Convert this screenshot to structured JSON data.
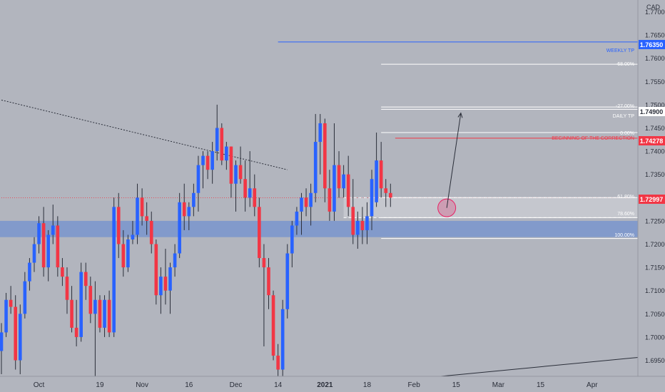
{
  "chart_data": {
    "type": "candlestick",
    "symbol_currency": "CAD",
    "y_axis": {
      "ylim": [
        1.691,
        1.774
      ],
      "ticks": [
        "1.77000",
        "1.76500",
        "1.76000",
        "1.75500",
        "1.75000",
        "1.74500",
        "1.74000",
        "1.73500",
        "1.73000",
        "1.72500",
        "1.72000",
        "1.71500",
        "1.71000",
        "1.70500",
        "1.70000",
        "1.69500"
      ]
    },
    "x_axis": {
      "labels": [
        {
          "text": "Oct",
          "bar": 8,
          "bold": false
        },
        {
          "text": "19",
          "bar": 21,
          "bold": false
        },
        {
          "text": "Nov",
          "bar": 30,
          "bold": false
        },
        {
          "text": "16",
          "bar": 40,
          "bold": false
        },
        {
          "text": "Dec",
          "bar": 50,
          "bold": false
        },
        {
          "text": "14",
          "bar": 59,
          "bold": false
        },
        {
          "text": "2021",
          "bar": 69,
          "bold": true
        },
        {
          "text": "18",
          "bar": 78,
          "bold": false
        },
        {
          "text": "Feb",
          "bar": 88,
          "bold": false
        },
        {
          "text": "15",
          "bar": 97,
          "bold": false
        },
        {
          "text": "Mar",
          "bar": 106,
          "bold": false
        },
        {
          "text": "15",
          "bar": 115,
          "bold": false
        },
        {
          "text": "Apr",
          "bar": 126,
          "bold": false
        }
      ]
    },
    "candles": [
      [
        1.697,
        1.703,
        1.692,
        1.701
      ],
      [
        1.701,
        1.7095,
        1.7,
        1.708
      ],
      [
        1.708,
        1.711,
        1.705,
        1.7065
      ],
      [
        1.7065,
        1.709,
        1.693,
        1.695
      ],
      [
        1.695,
        1.707,
        1.692,
        1.705
      ],
      [
        1.705,
        1.714,
        1.704,
        1.712
      ],
      [
        1.712,
        1.717,
        1.71,
        1.716
      ],
      [
        1.716,
        1.7215,
        1.714,
        1.72
      ],
      [
        1.72,
        1.726,
        1.718,
        1.7245
      ],
      [
        1.7245,
        1.728,
        1.713,
        1.715
      ],
      [
        1.715,
        1.723,
        1.712,
        1.722
      ],
      [
        1.722,
        1.7285,
        1.72,
        1.724
      ],
      [
        1.724,
        1.726,
        1.713,
        1.715
      ],
      [
        1.715,
        1.717,
        1.711,
        1.713
      ],
      [
        1.713,
        1.715,
        1.705,
        1.708
      ],
      [
        1.708,
        1.711,
        1.701,
        1.702
      ],
      [
        1.702,
        1.708,
        1.698,
        1.7
      ],
      [
        1.7,
        1.716,
        1.699,
        1.714
      ],
      [
        1.714,
        1.716,
        1.708,
        1.711
      ],
      [
        1.711,
        1.713,
        1.703,
        1.705
      ],
      [
        1.705,
        1.712,
        1.691,
        1.708
      ],
      [
        1.708,
        1.709,
        1.701,
        1.702
      ],
      [
        1.702,
        1.709,
        1.7,
        1.708
      ],
      [
        1.708,
        1.71,
        1.7,
        1.701
      ],
      [
        1.701,
        1.73,
        1.7,
        1.728
      ],
      [
        1.728,
        1.731,
        1.717,
        1.72
      ],
      [
        1.72,
        1.723,
        1.713,
        1.715
      ],
      [
        1.715,
        1.722,
        1.714,
        1.721
      ],
      [
        1.721,
        1.725,
        1.72,
        1.722
      ],
      [
        1.722,
        1.733,
        1.72,
        1.73
      ],
      [
        1.73,
        1.732,
        1.724,
        1.726
      ],
      [
        1.726,
        1.729,
        1.722,
        1.725
      ],
      [
        1.725,
        1.727,
        1.718,
        1.72
      ],
      [
        1.72,
        1.721,
        1.707,
        1.709
      ],
      [
        1.709,
        1.715,
        1.705,
        1.713
      ],
      [
        1.713,
        1.719,
        1.707,
        1.71
      ],
      [
        1.71,
        1.716,
        1.705,
        1.715
      ],
      [
        1.715,
        1.72,
        1.713,
        1.718
      ],
      [
        1.718,
        1.731,
        1.717,
        1.729
      ],
      [
        1.729,
        1.733,
        1.723,
        1.726
      ],
      [
        1.726,
        1.729,
        1.723,
        1.728
      ],
      [
        1.728,
        1.733,
        1.726,
        1.731
      ],
      [
        1.731,
        1.739,
        1.727,
        1.737
      ],
      [
        1.737,
        1.74,
        1.732,
        1.739
      ],
      [
        1.739,
        1.74,
        1.734,
        1.736
      ],
      [
        1.736,
        1.742,
        1.733,
        1.74
      ],
      [
        1.74,
        1.75,
        1.738,
        1.745
      ],
      [
        1.745,
        1.746,
        1.737,
        1.738
      ],
      [
        1.738,
        1.742,
        1.736,
        1.741
      ],
      [
        1.741,
        1.741,
        1.73,
        1.733
      ],
      [
        1.733,
        1.738,
        1.727,
        1.737
      ],
      [
        1.737,
        1.741,
        1.733,
        1.734
      ],
      [
        1.734,
        1.738,
        1.727,
        1.73
      ],
      [
        1.73,
        1.74,
        1.728,
        1.732
      ],
      [
        1.732,
        1.735,
        1.726,
        1.728
      ],
      [
        1.728,
        1.73,
        1.715,
        1.717
      ],
      [
        1.717,
        1.72,
        1.698,
        1.715
      ],
      [
        1.715,
        1.717,
        1.706,
        1.709
      ],
      [
        1.709,
        1.71,
        1.695,
        1.696
      ],
      [
        1.696,
        1.6985,
        1.691,
        1.693
      ],
      [
        1.693,
        1.708,
        1.691,
        1.706
      ],
      [
        1.706,
        1.72,
        1.704,
        1.718
      ],
      [
        1.718,
        1.725,
        1.715,
        1.724
      ],
      [
        1.724,
        1.728,
        1.722,
        1.727
      ],
      [
        1.727,
        1.731,
        1.722,
        1.73
      ],
      [
        1.73,
        1.732,
        1.726,
        1.728
      ],
      [
        1.728,
        1.733,
        1.724,
        1.731
      ],
      [
        1.731,
        1.748,
        1.729,
        1.742
      ],
      [
        1.742,
        1.748,
        1.735,
        1.746
      ],
      [
        1.746,
        1.747,
        1.729,
        1.732
      ],
      [
        1.732,
        1.736,
        1.725,
        1.727
      ],
      [
        1.727,
        1.746,
        1.725,
        1.737
      ],
      [
        1.737,
        1.74,
        1.73,
        1.732
      ],
      [
        1.732,
        1.737,
        1.73,
        1.735
      ],
      [
        1.735,
        1.739,
        1.726,
        1.728
      ],
      [
        1.728,
        1.734,
        1.72,
        1.722
      ],
      [
        1.722,
        1.727,
        1.719,
        1.725
      ],
      [
        1.725,
        1.728,
        1.72,
        1.723
      ],
      [
        1.723,
        1.729,
        1.72,
        1.726
      ],
      [
        1.726,
        1.736,
        1.723,
        1.734
      ],
      [
        1.729,
        1.744,
        1.728,
        1.738
      ],
      [
        1.738,
        1.742,
        1.73,
        1.732
      ],
      [
        1.732,
        1.734,
        1.728,
        1.731
      ],
      [
        1.731,
        1.733,
        1.728,
        1.73
      ]
    ],
    "levels": [
      {
        "name": "weekly-tp-line",
        "price": 1.7635,
        "color": "#2962ff",
        "start_bar": 59,
        "label": "WEEKLY TP",
        "tag": "1.76350",
        "tag_color": "#2962ff"
      },
      {
        "name": "fib-minus68-line",
        "price": 1.7587,
        "color": "#ffffff",
        "start_bar": 81,
        "label": "-68.00%"
      },
      {
        "name": "fib-minus27-line",
        "price": 1.7495,
        "color": "#ffffff",
        "start_bar": 81,
        "label": "-27.00%"
      },
      {
        "name": "daily-tp-line",
        "price": 1.749,
        "color": "#ffffff",
        "start_bar": 81,
        "label": "DAILY TP",
        "tag": "1.74900",
        "tag_color": "#ffffff"
      },
      {
        "name": "fib-0-line",
        "price": 1.744,
        "color": "#ffffff",
        "start_bar": 81,
        "label": "0.00%"
      },
      {
        "name": "correction-start-line",
        "price": 1.7428,
        "color": "#f23645",
        "start_bar": 84,
        "label": "BEGINNING OF THE CORRECTION",
        "tag": "1.74278",
        "tag_color": "#f23645"
      },
      {
        "name": "current-price-line",
        "price": 1.72997,
        "color": "#f23645",
        "start_bar": 0,
        "dotted": true,
        "tag": "1.72997",
        "tag_color": "#f23645"
      },
      {
        "name": "fib-618-line",
        "price": 1.73,
        "color": "#ffffff",
        "start_bar": 81,
        "label": "61.80%"
      },
      {
        "name": "fib-786-line",
        "price": 1.7257,
        "color": "#ffffff",
        "start_bar": 81,
        "label": "78.60%"
      },
      {
        "name": "fib-100-line",
        "price": 1.7212,
        "color": "#ffffff",
        "start_bar": 81,
        "label": "100.00%"
      }
    ],
    "labels": {
      "currency": "CAD",
      "weekly_tp": "WEEKLY TP",
      "fib_minus68": "-68.00%",
      "fib_minus27": "-27.00%",
      "daily_tp": "DAILY TP",
      "fib_0": "0.00%",
      "correction": "BEGINNING OF THE CORRECTION",
      "fib_618": "61.80%",
      "fib_786": "78.60%",
      "fib_100": "100.00%",
      "tag_weekly": "1.76350",
      "tag_daily": "1.74900",
      "tag_correction": "1.74278",
      "tag_current": "1.72997"
    },
    "zones": [
      {
        "name": "demand-zone",
        "from": 1.7215,
        "to": 1.725,
        "color": "#5b84d6",
        "opacity": 0.55
      },
      {
        "name": "fib-fill-zone",
        "from": 1.7257,
        "to": 1.73,
        "color": "#ffffff",
        "opacity": 0.25
      }
    ],
    "trendlines": [
      {
        "name": "downtrend-line",
        "from": [
          0,
          1.751
        ],
        "to": [
          61,
          1.736
        ],
        "dotted": true,
        "color": "#2a2e39"
      },
      {
        "name": "uptrend-line",
        "from": [
          88,
          1.691
        ],
        "to": [
          145,
          1.6965
        ],
        "dotted": false,
        "color": "#2a2e39"
      }
    ],
    "projection_arrow": {
      "from": [
        95,
        1.7278
      ],
      "to": [
        98,
        1.7482
      ]
    },
    "target_circle": {
      "bar": 95,
      "price": 1.7278
    },
    "colors": {
      "bull": "#2962ff",
      "bear": "#f23645",
      "background": "#b2b5be"
    }
  }
}
